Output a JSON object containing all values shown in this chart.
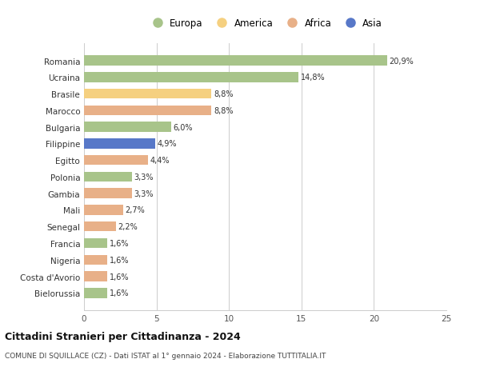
{
  "countries": [
    "Romania",
    "Ucraina",
    "Brasile",
    "Marocco",
    "Bulgaria",
    "Filippine",
    "Egitto",
    "Polonia",
    "Gambia",
    "Mali",
    "Senegal",
    "Francia",
    "Nigeria",
    "Costa d'Avorio",
    "Bielorussia"
  ],
  "values": [
    20.9,
    14.8,
    8.8,
    8.8,
    6.0,
    4.9,
    4.4,
    3.3,
    3.3,
    2.7,
    2.2,
    1.6,
    1.6,
    1.6,
    1.6
  ],
  "labels": [
    "20,9%",
    "14,8%",
    "8,8%",
    "8,8%",
    "6,0%",
    "4,9%",
    "4,4%",
    "3,3%",
    "3,3%",
    "2,7%",
    "2,2%",
    "1,6%",
    "1,6%",
    "1,6%",
    "1,6%"
  ],
  "continents": [
    "Europa",
    "Europa",
    "America",
    "Africa",
    "Europa",
    "Asia",
    "Africa",
    "Europa",
    "Africa",
    "Africa",
    "Africa",
    "Europa",
    "Africa",
    "Africa",
    "Europa"
  ],
  "colors": {
    "Europa": "#a8c48a",
    "America": "#f5d080",
    "Africa": "#e8b088",
    "Asia": "#5878c8"
  },
  "legend_order": [
    "Europa",
    "America",
    "Africa",
    "Asia"
  ],
  "xlim": [
    0,
    25
  ],
  "xticks": [
    0,
    5,
    10,
    15,
    20,
    25
  ],
  "title": "Cittadini Stranieri per Cittadinanza - 2024",
  "subtitle": "COMUNE DI SQUILLACE (CZ) - Dati ISTAT al 1° gennaio 2024 - Elaborazione TUTTITALIA.IT",
  "bg_color": "#ffffff",
  "grid_color": "#cccccc"
}
